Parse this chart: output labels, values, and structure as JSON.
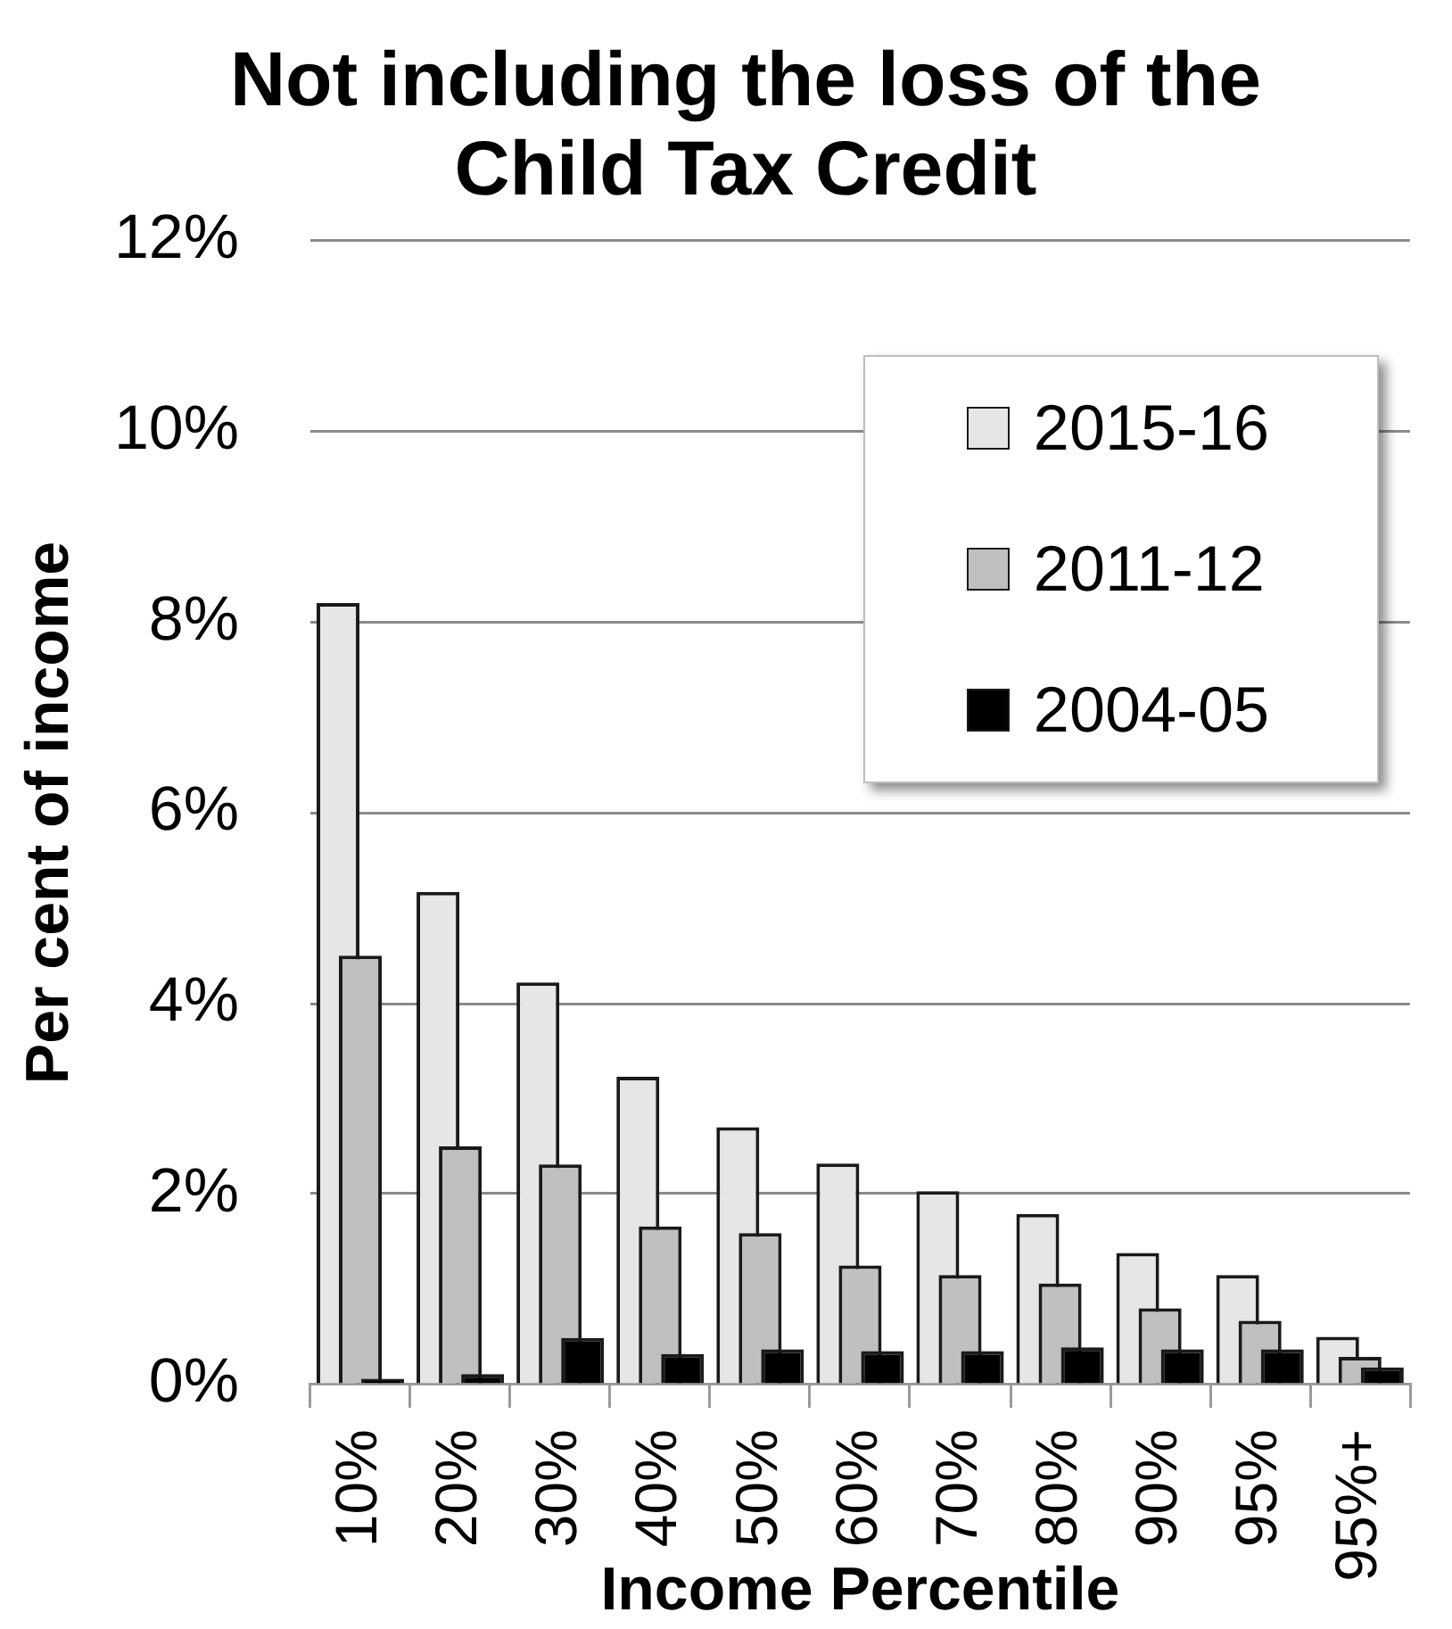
{
  "chart_data": {
    "type": "bar",
    "title": "Not including the loss of the Child Tax Credit",
    "xlabel": "Income Percentile",
    "ylabel": "Per cent of income",
    "categories": [
      "10%",
      "20%",
      "30%",
      "40%",
      "50%",
      "60%",
      "70%",
      "80%",
      "90%",
      "95%",
      "95%+"
    ],
    "series": [
      {
        "name": "2015-16",
        "color": "#e6e6e6",
        "values": [
          8.2,
          5.17,
          4.22,
          3.23,
          2.7,
          2.32,
          2.03,
          1.79,
          1.38,
          1.15,
          0.5
        ]
      },
      {
        "name": "2011-12",
        "color": "#c0c0c0",
        "values": [
          4.5,
          2.5,
          2.31,
          1.66,
          1.59,
          1.25,
          1.15,
          1.06,
          0.8,
          0.67,
          0.29
        ]
      },
      {
        "name": "2004-05",
        "color": "#000000",
        "values": [
          0.06,
          0.11,
          0.49,
          0.32,
          0.37,
          0.35,
          0.35,
          0.39,
          0.37,
          0.37,
          0.18
        ]
      }
    ],
    "ylim": [
      0,
      12
    ],
    "yticks": [
      {
        "value": 0,
        "label": "0%"
      },
      {
        "value": 2,
        "label": "2%"
      },
      {
        "value": 4,
        "label": "4%"
      },
      {
        "value": 6,
        "label": "6%"
      },
      {
        "value": 8,
        "label": "8%"
      },
      {
        "value": 10,
        "label": "10%"
      },
      {
        "value": 12,
        "label": "12%"
      }
    ],
    "grid": "y",
    "legend": "top right"
  }
}
